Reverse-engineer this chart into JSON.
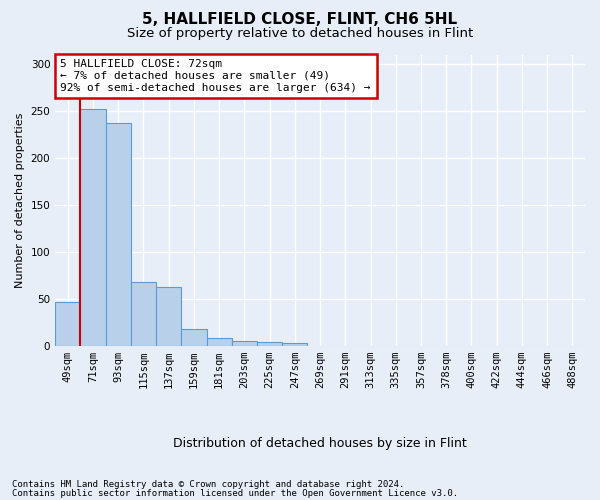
{
  "title1": "5, HALLFIELD CLOSE, FLINT, CH6 5HL",
  "title2": "Size of property relative to detached houses in Flint",
  "xlabel": "Distribution of detached houses by size in Flint",
  "ylabel": "Number of detached properties",
  "bar_labels": [
    "49sqm",
    "71sqm",
    "93sqm",
    "115sqm",
    "137sqm",
    "159sqm",
    "181sqm",
    "203sqm",
    "225sqm",
    "247sqm",
    "269sqm",
    "291sqm",
    "313sqm",
    "335sqm",
    "357sqm",
    "378sqm",
    "400sqm",
    "422sqm",
    "444sqm",
    "466sqm",
    "488sqm"
  ],
  "bar_values": [
    47,
    252,
    238,
    68,
    63,
    18,
    9,
    5,
    4,
    3,
    0,
    0,
    0,
    0,
    0,
    0,
    0,
    0,
    0,
    0,
    0
  ],
  "bar_color": "#b8d0ea",
  "bar_edge_color": "#5b9bd5",
  "property_line_x": 1.0,
  "property_line_color": "#cc0000",
  "annotation_text": "5 HALLFIELD CLOSE: 72sqm\n← 7% of detached houses are smaller (49)\n92% of semi-detached houses are larger (634) →",
  "annotation_box_color": "#ffffff",
  "annotation_box_edge": "#cc0000",
  "ylim": [
    0,
    310
  ],
  "yticks": [
    0,
    50,
    100,
    150,
    200,
    250,
    300
  ],
  "footer1": "Contains HM Land Registry data © Crown copyright and database right 2024.",
  "footer2": "Contains public sector information licensed under the Open Government Licence v3.0.",
  "background_color": "#e8eef8",
  "grid_color": "#ffffff",
  "title1_fontsize": 11,
  "title2_fontsize": 9.5,
  "xlabel_fontsize": 9,
  "ylabel_fontsize": 8,
  "tick_fontsize": 7.5,
  "footer_fontsize": 6.5,
  "annot_fontsize": 8
}
